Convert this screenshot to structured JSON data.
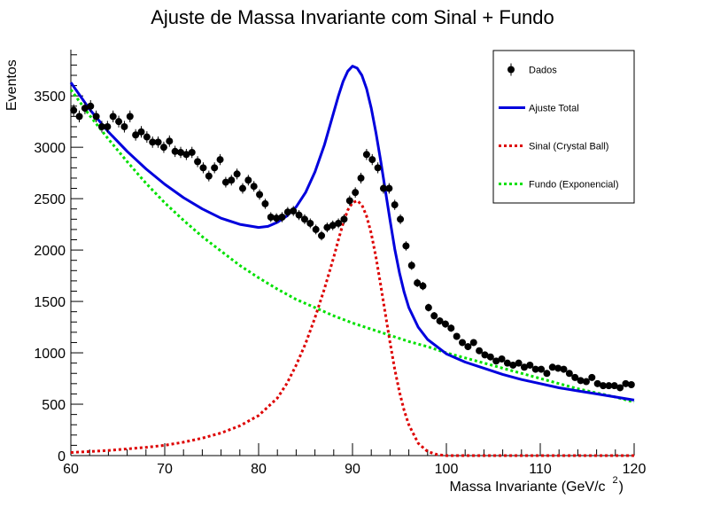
{
  "chart_data": {
    "type": "scatter",
    "title": "Ajuste de Massa Invariante com Sinal + Fundo",
    "xlabel": "Massa Invariante (GeV/c",
    "xlabel_sup": "2",
    "xlabel_close": ")",
    "ylabel": "Eventos",
    "xlim": [
      60,
      120
    ],
    "ylim": [
      0,
      3950
    ],
    "xticks": [
      60,
      70,
      80,
      90,
      100,
      110,
      120
    ],
    "yticks": [
      0,
      500,
      1000,
      1500,
      2000,
      2500,
      3000,
      3500
    ],
    "legend_position": "top-right",
    "colors": {
      "dados": "#000000",
      "total": "#0000dd",
      "sinal": "#dd0000",
      "fundo": "#00e000"
    },
    "legend": [
      {
        "key": "dados",
        "label": "Dados",
        "style": "marker"
      },
      {
        "key": "total",
        "label": "Ajuste Total",
        "style": "solid"
      },
      {
        "key": "sinal",
        "label": "Sinal (Crystal Ball)",
        "style": "dotted"
      },
      {
        "key": "fundo",
        "label": "Fundo (Exponencial)",
        "style": "dotted"
      }
    ],
    "dados": {
      "x": [
        60.3,
        60.9,
        61.5,
        62.1,
        62.7,
        63.3,
        63.9,
        64.5,
        65.1,
        65.7,
        66.3,
        66.9,
        67.5,
        68.1,
        68.7,
        69.3,
        69.9,
        70.5,
        71.1,
        71.7,
        72.3,
        72.9,
        73.5,
        74.1,
        74.7,
        75.3,
        75.9,
        76.5,
        77.1,
        77.7,
        78.3,
        78.9,
        79.5,
        80.1,
        80.7,
        81.3,
        81.9,
        82.5,
        83.1,
        83.7,
        84.3,
        84.9,
        85.5,
        86.1,
        86.7,
        87.3,
        87.9,
        88.5,
        89.1,
        89.7,
        90.3,
        90.9,
        91.5,
        92.1,
        92.7,
        93.3,
        93.9,
        94.5,
        95.1,
        95.7,
        96.3,
        96.9,
        97.5,
        98.1,
        98.7,
        99.3,
        99.9,
        100.5,
        101.1,
        101.7,
        102.3,
        102.9,
        103.5,
        104.1,
        104.7,
        105.3,
        105.9,
        106.5,
        107.1,
        107.7,
        108.3,
        108.9,
        109.5,
        110.1,
        110.7,
        111.3,
        111.9,
        112.5,
        113.1,
        113.7,
        114.3,
        114.9,
        115.5,
        116.1,
        116.7,
        117.3,
        117.9,
        118.5,
        119.1,
        119.7
      ],
      "y": [
        3360,
        3300,
        3380,
        3400,
        3300,
        3200,
        3200,
        3300,
        3250,
        3200,
        3300,
        3120,
        3150,
        3100,
        3050,
        3050,
        3000,
        3060,
        2960,
        2950,
        2930,
        2950,
        2860,
        2800,
        2720,
        2800,
        2880,
        2660,
        2680,
        2740,
        2600,
        2680,
        2620,
        2540,
        2450,
        2320,
        2310,
        2320,
        2370,
        2380,
        2340,
        2300,
        2260,
        2200,
        2140,
        2220,
        2240,
        2260,
        2300,
        2480,
        2560,
        2700,
        2930,
        2880,
        2800,
        2600,
        2600,
        2440,
        2300,
        2040,
        1850,
        1680,
        1650,
        1440,
        1360,
        1310,
        1280,
        1240,
        1160,
        1100,
        1060,
        1100,
        1020,
        980,
        960,
        920,
        940,
        900,
        880,
        900,
        860,
        880,
        840,
        840,
        800,
        860,
        850,
        840,
        800,
        760,
        730,
        720,
        760,
        700,
        680,
        680,
        680,
        660,
        700,
        690
      ]
    },
    "fit_total": {
      "x": [
        60,
        62,
        64,
        66,
        68,
        70,
        72,
        74,
        76,
        78,
        80,
        81,
        82,
        83,
        84,
        85,
        86,
        87,
        88,
        88.5,
        89,
        89.5,
        90,
        90.5,
        91,
        91.5,
        92,
        92.5,
        93,
        93.5,
        94,
        94.5,
        95,
        95.5,
        96,
        97,
        98,
        99,
        100,
        102,
        104,
        106,
        108,
        110,
        112,
        114,
        116,
        118,
        120
      ],
      "y": [
        3630,
        3370,
        3150,
        2960,
        2790,
        2640,
        2510,
        2400,
        2310,
        2250,
        2220,
        2230,
        2270,
        2330,
        2420,
        2560,
        2760,
        3020,
        3340,
        3500,
        3640,
        3740,
        3790,
        3770,
        3700,
        3570,
        3380,
        3140,
        2870,
        2580,
        2290,
        2010,
        1780,
        1590,
        1440,
        1250,
        1130,
        1060,
        990,
        910,
        850,
        790,
        740,
        700,
        660,
        630,
        600,
        570,
        540
      ]
    },
    "sinal": {
      "x": [
        60,
        62,
        64,
        66,
        68,
        70,
        72,
        74,
        76,
        78,
        80,
        82,
        83,
        84,
        85,
        86,
        87,
        88,
        88.5,
        89,
        89.5,
        90,
        90.5,
        91,
        91.5,
        92,
        92.5,
        93,
        93.5,
        94,
        94.5,
        95,
        95.5,
        96,
        97,
        98,
        99,
        100,
        102,
        104,
        106,
        108,
        110,
        112,
        114,
        116,
        118,
        120
      ],
      "y": [
        30,
        40,
        50,
        65,
        80,
        100,
        130,
        170,
        220,
        290,
        390,
        560,
        700,
        880,
        1090,
        1340,
        1620,
        1930,
        2100,
        2260,
        2390,
        2460,
        2480,
        2440,
        2330,
        2160,
        1930,
        1660,
        1380,
        1100,
        840,
        620,
        440,
        300,
        120,
        40,
        10,
        0,
        0,
        0,
        0,
        0,
        0,
        0,
        0,
        0,
        0,
        0
      ]
    },
    "fundo": {
      "x": [
        60,
        62,
        64,
        66,
        68,
        70,
        72,
        74,
        76,
        78,
        80,
        82,
        84,
        86,
        88,
        90,
        92,
        94,
        96,
        98,
        100,
        102,
        104,
        106,
        108,
        110,
        112,
        114,
        116,
        118,
        120
      ],
      "y": [
        3560,
        3310,
        3080,
        2860,
        2650,
        2460,
        2290,
        2130,
        1990,
        1850,
        1730,
        1620,
        1520,
        1440,
        1360,
        1290,
        1230,
        1170,
        1110,
        1060,
        1000,
        950,
        900,
        850,
        800,
        750,
        700,
        650,
        610,
        570,
        520
      ]
    }
  }
}
